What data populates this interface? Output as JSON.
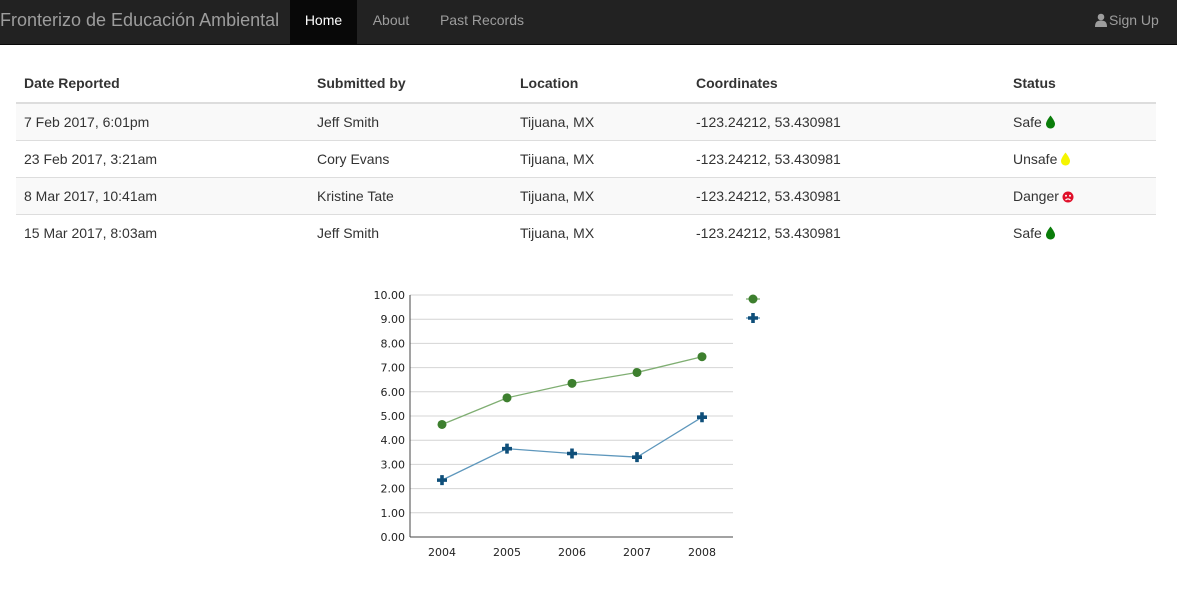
{
  "navbar": {
    "brand": "Fronterizo de Educación Ambiental",
    "items": [
      {
        "label": "Home",
        "active": true
      },
      {
        "label": "About",
        "active": false
      },
      {
        "label": "Past Records",
        "active": false
      }
    ],
    "signup_label": "Sign Up",
    "signup_icon": "user-icon"
  },
  "table": {
    "headers": [
      "Date Reported",
      "Submitted by",
      "Location",
      "Coordinates",
      "Status"
    ],
    "rows": [
      {
        "date": "7 Feb 2017, 6:01pm",
        "submitted_by": "Jeff Smith",
        "location": "Tijuana, MX",
        "coordinates": "-123.24212, 53.430981",
        "status": "Safe",
        "status_icon": "drop-icon",
        "status_color": "#0a7d0a"
      },
      {
        "date": "23 Feb 2017, 3:21am",
        "submitted_by": "Cory Evans",
        "location": "Tijuana, MX",
        "coordinates": "-123.24212, 53.430981",
        "status": "Unsafe",
        "status_icon": "drop-icon",
        "status_color": "#f5f500"
      },
      {
        "date": "8 Mar 2017, 10:41am",
        "submitted_by": "Kristine Tate",
        "location": "Tijuana, MX",
        "coordinates": "-123.24212, 53.430981",
        "status": "Danger",
        "status_icon": "danger-icon",
        "status_color": "#e0102a"
      },
      {
        "date": "15 Mar 2017, 8:03am",
        "submitted_by": "Jeff Smith",
        "location": "Tijuana, MX",
        "coordinates": "-123.24212, 53.430981",
        "status": "Safe",
        "status_icon": "drop-icon",
        "status_color": "#0a7d0a"
      }
    ]
  },
  "chart_data": {
    "type": "line",
    "categories": [
      "2004",
      "2005",
      "2006",
      "2007",
      "2008"
    ],
    "series": [
      {
        "values": [
          4.65,
          5.75,
          6.35,
          6.8,
          7.45
        ],
        "color": "#3d7f2e",
        "line_color": "#7fae72",
        "marker": "circle"
      },
      {
        "values": [
          2.35,
          3.65,
          3.45,
          3.3,
          4.95
        ],
        "color": "#0f4f7a",
        "line_color": "#5e97bc",
        "marker": "cross"
      }
    ],
    "yticks": [
      "0.00",
      "1.00",
      "2.00",
      "3.00",
      "4.00",
      "5.00",
      "6.00",
      "7.00",
      "8.00",
      "9.00",
      "10.00"
    ],
    "ylim": [
      0,
      10
    ],
    "grid": true,
    "legend": "top-right",
    "title": "",
    "xlabel": "",
    "ylabel": ""
  }
}
